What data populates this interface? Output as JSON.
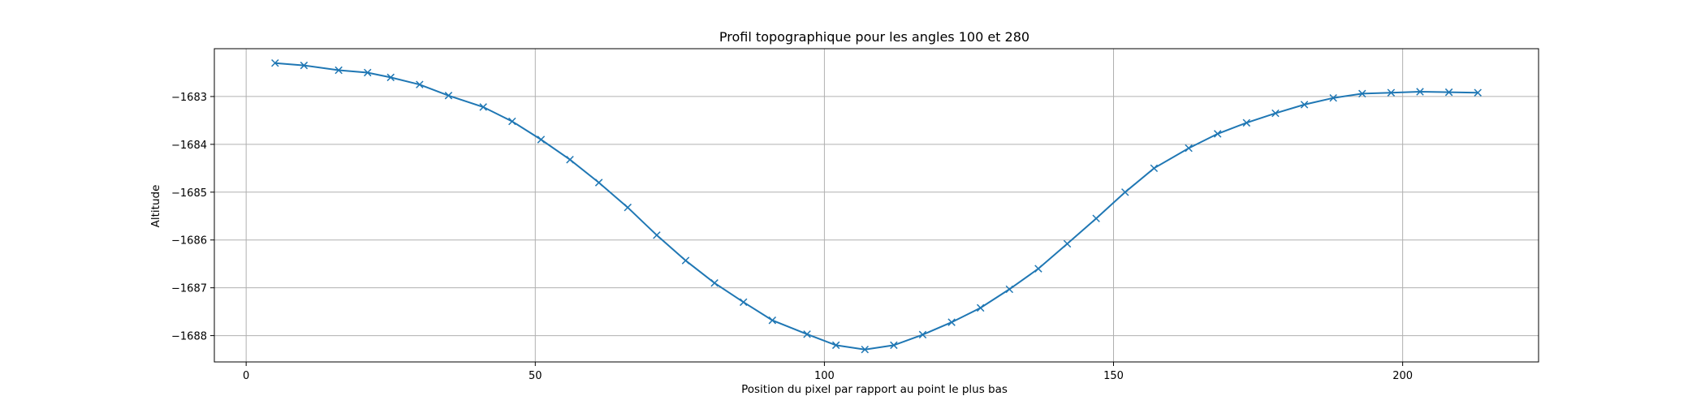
{
  "chart_data": {
    "type": "line",
    "title": "Profil topographique pour les angles 100 et 280",
    "xlabel": "Position du pixel par rapport au point le plus bas",
    "ylabel": "Altitude",
    "xlim": [
      -5.5,
      223.5
    ],
    "ylim": [
      -1688.55,
      -1682.0
    ],
    "grid": true,
    "marker": "x",
    "line_color": "#1f77b4",
    "x_ticks": [
      0,
      50,
      100,
      150,
      200
    ],
    "x_tick_labels": [
      "0",
      "50",
      "100",
      "150",
      "200"
    ],
    "y_ticks": [
      -1683,
      -1684,
      -1685,
      -1686,
      -1687,
      -1688
    ],
    "y_tick_labels": [
      "−1683",
      "−1684",
      "−1685",
      "−1686",
      "−1687",
      "−1688"
    ],
    "series": [
      {
        "x": [
          5,
          10,
          16,
          21,
          25,
          30,
          35,
          41,
          46,
          51,
          56,
          61,
          66,
          71,
          76,
          81,
          86,
          91,
          97,
          102,
          107,
          112,
          117,
          122,
          127,
          132,
          137,
          142,
          147,
          152,
          157,
          163,
          168,
          173,
          178,
          183,
          188,
          193,
          198,
          203,
          208,
          213
        ],
        "y": [
          -1682.3,
          -1682.35,
          -1682.45,
          -1682.5,
          -1682.6,
          -1682.75,
          -1682.98,
          -1683.22,
          -1683.52,
          -1683.9,
          -1684.32,
          -1684.8,
          -1685.32,
          -1685.9,
          -1686.43,
          -1686.9,
          -1687.3,
          -1687.68,
          -1687.97,
          -1688.2,
          -1688.29,
          -1688.2,
          -1687.98,
          -1687.72,
          -1687.42,
          -1687.03,
          -1686.6,
          -1686.08,
          -1685.55,
          -1685.0,
          -1684.5,
          -1684.08,
          -1683.78,
          -1683.55,
          -1683.35,
          -1683.17,
          -1683.03,
          -1682.94,
          -1682.92,
          -1682.9,
          -1682.91,
          -1682.92
        ]
      }
    ]
  }
}
